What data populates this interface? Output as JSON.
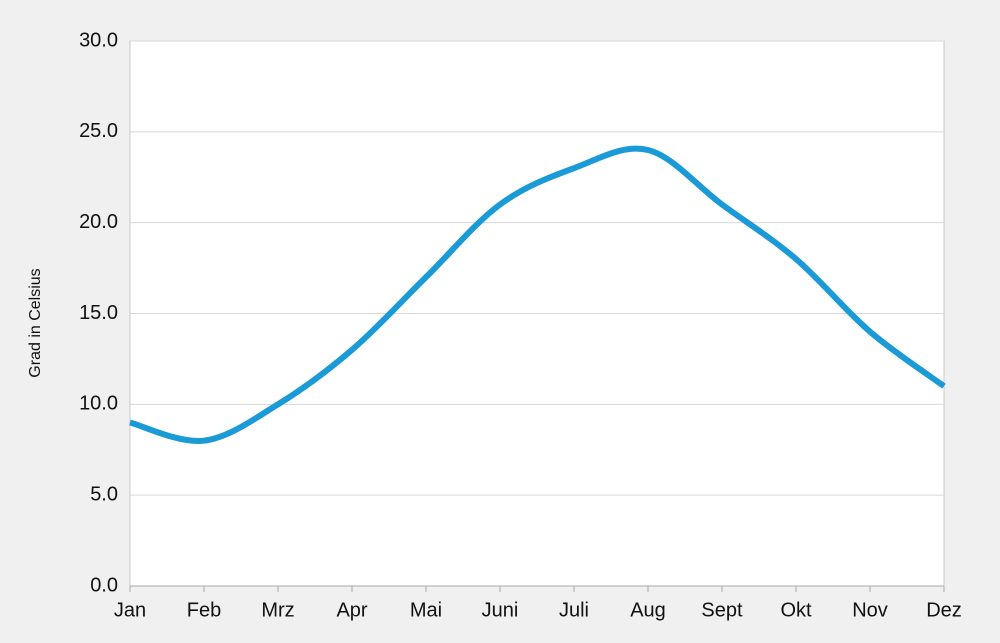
{
  "chart_data": {
    "type": "line",
    "y_label": "Grad in Celsius",
    "categories": [
      "Jan",
      "Feb",
      "Mrz",
      "Apr",
      "Mai",
      "Juni",
      "Juli",
      "Aug",
      "Sept",
      "Okt",
      "Nov",
      "Dez"
    ],
    "values": [
      9,
      8,
      10,
      13,
      17,
      21,
      23,
      24,
      21,
      18,
      14,
      11
    ],
    "color": "#1a9ad6",
    "smooth": true,
    "ylim": [
      0,
      30
    ],
    "yticks": [
      {
        "value": 0,
        "label": "0.0"
      },
      {
        "value": 5,
        "label": "5.0"
      },
      {
        "value": 10,
        "label": "10.0"
      },
      {
        "value": 15,
        "label": "15.0"
      },
      {
        "value": 20,
        "label": "20.0"
      },
      {
        "value": 25,
        "label": "25.0"
      },
      {
        "value": 30,
        "label": "30.0"
      }
    ],
    "grid": true
  }
}
